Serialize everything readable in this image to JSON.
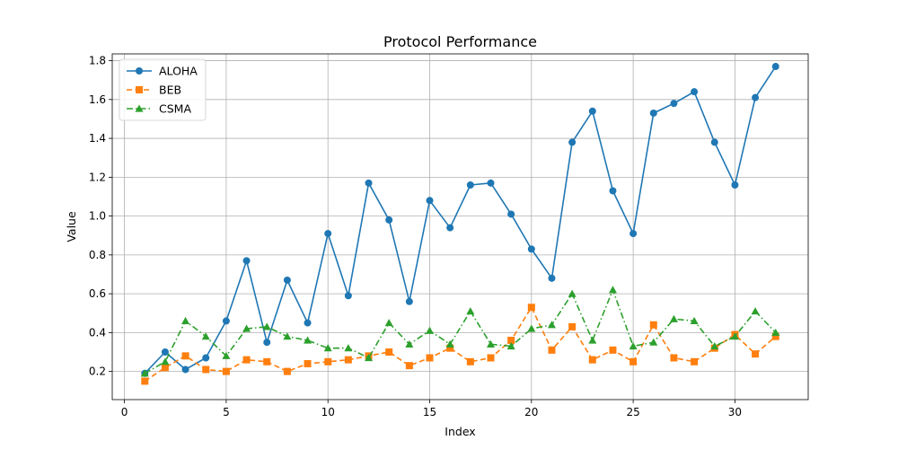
{
  "chart_data": {
    "type": "line",
    "title": "Protocol Performance",
    "xlabel": "Index",
    "ylabel": "Value",
    "xlim": [
      -0.6,
      33.6
    ],
    "ylim": [
      0.055,
      1.835
    ],
    "xticks": [
      0,
      5,
      10,
      15,
      20,
      25,
      30
    ],
    "yticks": [
      0.2,
      0.4,
      0.6,
      0.8,
      1.0,
      1.2,
      1.4,
      1.6,
      1.8
    ],
    "ytick_labels": [
      "0.2",
      "0.4",
      "0.6",
      "0.8",
      "1.0",
      "1.2",
      "1.4",
      "1.6",
      "1.8"
    ],
    "grid": true,
    "legend_position": "top-left",
    "x": [
      1,
      2,
      3,
      4,
      5,
      6,
      7,
      8,
      9,
      10,
      11,
      12,
      13,
      14,
      15,
      16,
      17,
      18,
      19,
      20,
      21,
      22,
      23,
      24,
      25,
      26,
      27,
      28,
      29,
      30,
      31,
      32
    ],
    "series": [
      {
        "name": "ALOHA",
        "color": "#1f77b4",
        "marker": "circle",
        "line_style": "solid",
        "values": [
          0.19,
          0.3,
          0.21,
          0.27,
          0.46,
          0.77,
          0.35,
          0.67,
          0.45,
          0.91,
          0.59,
          1.17,
          0.98,
          0.56,
          1.08,
          0.94,
          1.16,
          1.17,
          1.01,
          0.83,
          0.68,
          1.38,
          1.54,
          1.13,
          0.91,
          1.53,
          1.58,
          1.64,
          1.38,
          1.16,
          1.61,
          1.77
        ]
      },
      {
        "name": "BEB",
        "color": "#ff7f0e",
        "marker": "square",
        "line_style": "dashed",
        "values": [
          0.15,
          0.22,
          0.28,
          0.21,
          0.2,
          0.26,
          0.25,
          0.2,
          0.24,
          0.25,
          0.26,
          0.28,
          0.3,
          0.23,
          0.27,
          0.32,
          0.25,
          0.27,
          0.36,
          0.53,
          0.31,
          0.43,
          0.26,
          0.31,
          0.25,
          0.44,
          0.27,
          0.25,
          0.32,
          0.39,
          0.29,
          0.38
        ]
      },
      {
        "name": "CSMA",
        "color": "#2ca02c",
        "marker": "triangle",
        "line_style": "dashdot",
        "values": [
          0.19,
          0.25,
          0.46,
          0.38,
          0.28,
          0.42,
          0.43,
          0.38,
          0.36,
          0.32,
          0.32,
          0.27,
          0.45,
          0.34,
          0.41,
          0.34,
          0.51,
          0.34,
          0.33,
          0.42,
          0.44,
          0.6,
          0.36,
          0.62,
          0.33,
          0.35,
          0.47,
          0.46,
          0.33,
          0.38,
          0.51,
          0.4
        ]
      }
    ]
  }
}
